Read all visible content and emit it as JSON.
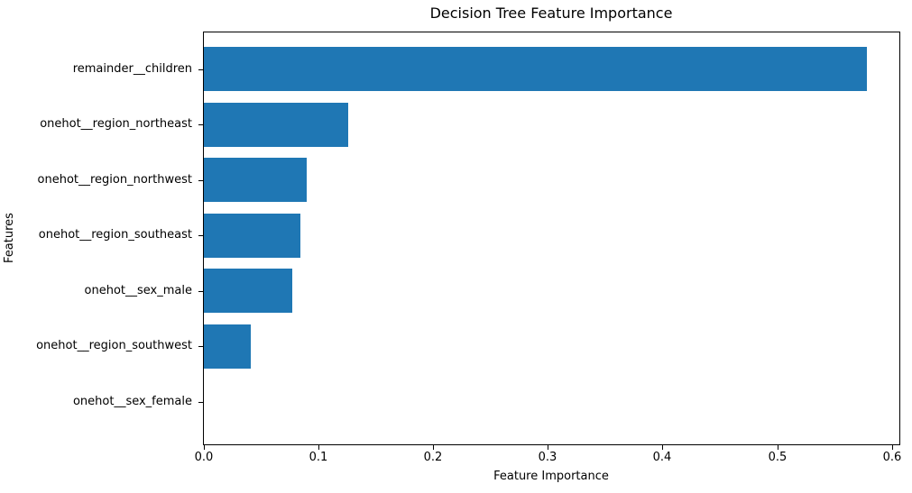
{
  "chart_data": {
    "type": "bar",
    "orientation": "horizontal",
    "title": "Decision Tree Feature Importance",
    "xlabel": "Feature Importance",
    "ylabel": "Features",
    "categories": [
      "remainder__children",
      "onehot__region_northeast",
      "onehot__region_northwest",
      "onehot__region_southeast",
      "onehot__sex_male",
      "onehot__region_southwest",
      "onehot__sex_female"
    ],
    "values": [
      0.578,
      0.126,
      0.09,
      0.084,
      0.077,
      0.041,
      0.0
    ],
    "xlim": [
      0.0,
      0.6065
    ],
    "x_ticks": [
      0.0,
      0.1,
      0.2,
      0.3,
      0.4,
      0.5,
      0.6
    ],
    "x_tick_labels": [
      "0.0",
      "0.1",
      "0.2",
      "0.3",
      "0.4",
      "0.5",
      "0.6"
    ],
    "bar_color": "#1f77b4",
    "grid": false,
    "legend": null
  }
}
